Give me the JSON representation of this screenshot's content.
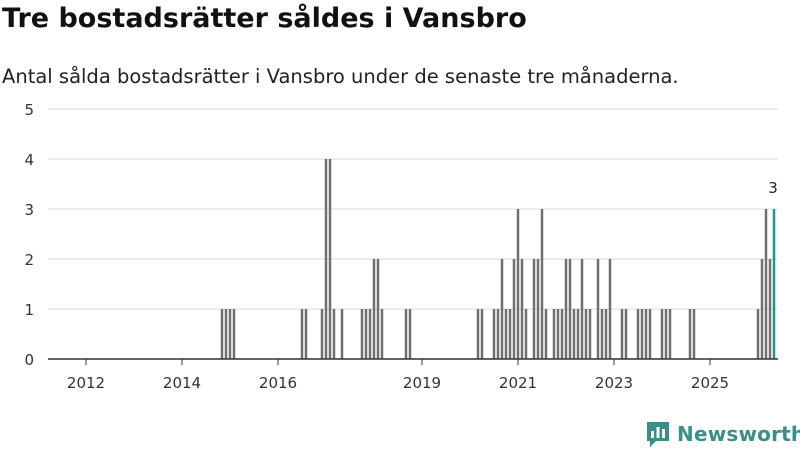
{
  "title": "Tre bostadsrätter såldes i Vansbro",
  "subtitle": "Antal sålda bostadsrätter i Vansbro under de senaste tre månaderna.",
  "brand": {
    "name": "Newsworthy"
  },
  "colors": {
    "bar": "#707070",
    "highlight": "#1a9a8c",
    "grid": "#d9d9d9",
    "axis": "#333333",
    "brand": "#3a8f87"
  },
  "chart_data": {
    "type": "bar",
    "title": "Tre bostadsrätter såldes i Vansbro",
    "subtitle": "Antal sålda bostadsrätter i Vansbro under de senaste tre månaderna.",
    "xlabel": "",
    "ylabel": "",
    "ylim": [
      0,
      5
    ],
    "yticks": [
      0,
      1,
      2,
      3,
      4,
      5
    ],
    "x_tick_labels": [
      {
        "label": "2012",
        "index": 8
      },
      {
        "label": "2014",
        "index": 32
      },
      {
        "label": "2016",
        "index": 56
      },
      {
        "label": "2019",
        "index": 92
      },
      {
        "label": "2021",
        "index": 116
      },
      {
        "label": "2023",
        "index": 140
      },
      {
        "label": "2025",
        "index": 164
      }
    ],
    "grid": true,
    "legend": "none",
    "period": "month",
    "n_periods": 181,
    "x": [
      42,
      43,
      44,
      45,
      62,
      63,
      67,
      68,
      69,
      70,
      72,
      77,
      78,
      79,
      80,
      81,
      82,
      88,
      89,
      106,
      107,
      110,
      111,
      112,
      113,
      114,
      115,
      116,
      117,
      118,
      120,
      121,
      122,
      123,
      125,
      126,
      127,
      128,
      129,
      130,
      131,
      132,
      133,
      134,
      136,
      137,
      138,
      139,
      142,
      143,
      146,
      147,
      148,
      149,
      152,
      153,
      154,
      159,
      160
    ],
    "values": [
      1,
      1,
      1,
      1,
      1,
      1,
      1,
      4,
      4,
      1,
      1,
      1,
      1,
      1,
      2,
      2,
      1,
      1,
      1,
      1,
      1,
      1,
      1,
      2,
      1,
      1,
      2,
      3,
      2,
      1,
      2,
      2,
      3,
      1,
      1,
      1,
      1,
      2,
      2,
      1,
      1,
      2,
      1,
      1,
      2,
      1,
      1,
      2,
      1,
      1,
      1,
      1,
      1,
      1,
      1,
      1,
      1,
      1,
      1
    ],
    "series": [
      {
        "name": "Antal sålda bostadsrätter",
        "x": [
          167,
          168,
          169,
          170,
          171,
          172,
          173,
          174,
          175,
          176,
          177,
          178,
          179
        ],
        "values": [
          0,
          0,
          0,
          0,
          0,
          0,
          0,
          0,
          0,
          1,
          2,
          3,
          2
        ]
      }
    ],
    "highlight": {
      "index": 180,
      "value": 3,
      "label": "3"
    }
  }
}
